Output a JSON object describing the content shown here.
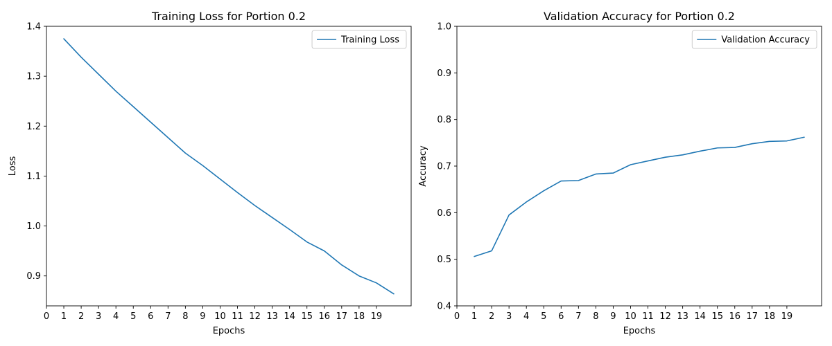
{
  "chart_data": [
    {
      "type": "line",
      "title": "Training Loss for Portion 0.2",
      "xlabel": "Epochs",
      "ylabel": "Loss",
      "xlim": [
        0,
        21
      ],
      "ylim": [
        0.84,
        1.4
      ],
      "xticks": [
        0,
        1,
        2,
        3,
        4,
        5,
        6,
        7,
        8,
        9,
        10,
        11,
        12,
        13,
        14,
        15,
        16,
        17,
        18,
        19
      ],
      "yticks": [
        0.9,
        1.0,
        1.1,
        1.2,
        1.3,
        1.4
      ],
      "legend": "top-right",
      "grid": false,
      "color": "#1f77b4",
      "x": [
        1,
        2,
        3,
        4,
        5,
        6,
        7,
        8,
        9,
        10,
        11,
        12,
        13,
        14,
        15,
        16,
        17,
        18,
        19,
        20
      ],
      "series": [
        {
          "name": "Training Loss",
          "values": [
            1.375,
            1.338,
            1.304,
            1.27,
            1.239,
            1.208,
            1.177,
            1.146,
            1.121,
            1.094,
            1.067,
            1.041,
            1.017,
            0.993,
            0.968,
            0.95,
            0.922,
            0.9,
            0.886,
            0.864
          ]
        }
      ]
    },
    {
      "type": "line",
      "title": "Validation Accuracy for Portion 0.2",
      "xlabel": "Epochs",
      "ylabel": "Accuracy",
      "xlim": [
        0,
        21
      ],
      "ylim": [
        0.4,
        1.0
      ],
      "xticks": [
        0,
        1,
        2,
        3,
        4,
        5,
        6,
        7,
        8,
        9,
        10,
        11,
        12,
        13,
        14,
        15,
        16,
        17,
        18,
        19
      ],
      "yticks": [
        0.4,
        0.5,
        0.6,
        0.7,
        0.8,
        0.9,
        1.0
      ],
      "legend": "top-right",
      "grid": false,
      "color": "#1f77b4",
      "x": [
        1,
        2,
        3,
        4,
        5,
        6,
        7,
        8,
        9,
        10,
        11,
        12,
        13,
        14,
        15,
        16,
        17,
        18,
        19,
        20
      ],
      "series": [
        {
          "name": "Validation Accuracy",
          "values": [
            0.506,
            0.518,
            0.595,
            0.623,
            0.647,
            0.668,
            0.669,
            0.683,
            0.685,
            0.703,
            0.711,
            0.719,
            0.724,
            0.732,
            0.739,
            0.74,
            0.748,
            0.753,
            0.754,
            0.762
          ]
        }
      ]
    }
  ]
}
